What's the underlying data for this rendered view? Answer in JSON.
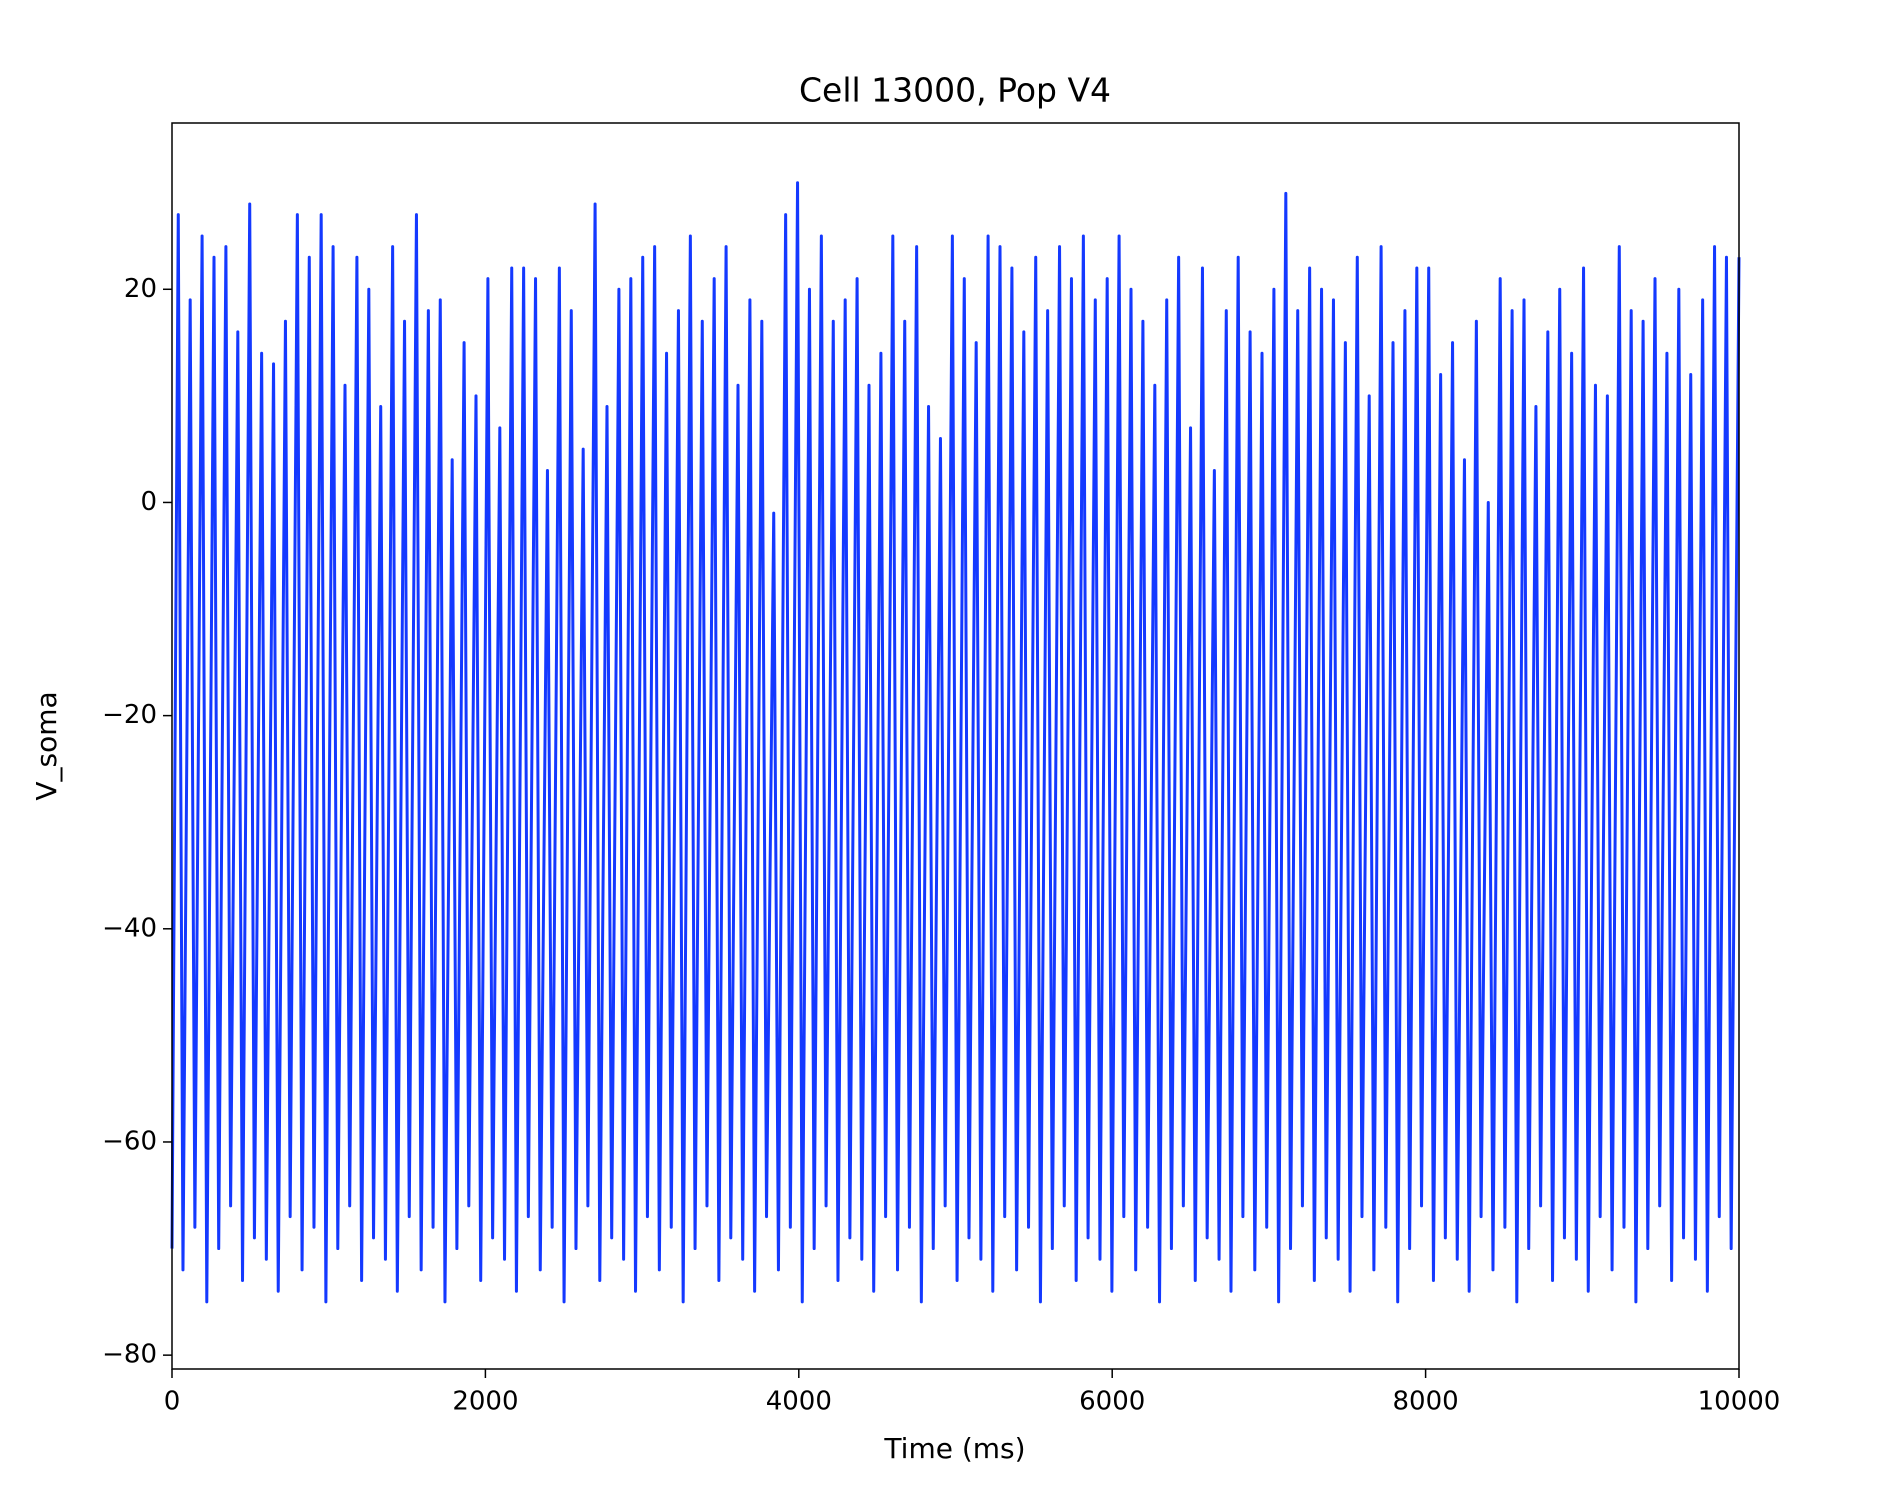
{
  "chart_data": {
    "type": "line",
    "title": "Cell 13000, Pop V4",
    "x_label": "Time (ms)",
    "y_label": "V_soma",
    "xlim": [
      0,
      10000
    ],
    "ylim": [
      -81.3,
      35.6
    ],
    "xticks": [
      0,
      2000,
      4000,
      6000,
      8000,
      10000
    ],
    "yticks": [
      {
        "value": -80,
        "label": "−80"
      },
      {
        "value": -60,
        "label": "−60"
      },
      {
        "value": -40,
        "label": "−40"
      },
      {
        "value": -20,
        "label": "−20"
      },
      0,
      20
    ],
    "color": "#1439ff",
    "x": [
      0,
      40,
      70,
      116,
      146,
      192,
      222,
      268,
      298,
      344,
      374,
      420,
      450,
      496,
      526,
      572,
      602,
      648,
      678,
      724,
      754,
      800,
      830,
      876,
      906,
      952,
      982,
      1028,
      1058,
      1104,
      1134,
      1180,
      1210,
      1256,
      1286,
      1332,
      1362,
      1408,
      1438,
      1484,
      1514,
      1560,
      1590,
      1636,
      1666,
      1712,
      1742,
      1788,
      1818,
      1864,
      1894,
      1940,
      1970,
      2016,
      2046,
      2092,
      2122,
      2168,
      2198,
      2244,
      2274,
      2320,
      2350,
      2396,
      2426,
      2472,
      2502,
      2548,
      2578,
      2624,
      2654,
      2700,
      2730,
      2776,
      2806,
      2852,
      2882,
      2928,
      2958,
      3004,
      3034,
      3080,
      3110,
      3156,
      3186,
      3232,
      3262,
      3308,
      3338,
      3384,
      3414,
      3460,
      3490,
      3536,
      3566,
      3612,
      3642,
      3688,
      3718,
      3764,
      3794,
      3840,
      3870,
      3916,
      3946,
      3992,
      4022,
      4068,
      4098,
      4144,
      4174,
      4220,
      4250,
      4296,
      4326,
      4372,
      4402,
      4448,
      4478,
      4524,
      4554,
      4600,
      4630,
      4676,
      4706,
      4752,
      4782,
      4828,
      4858,
      4904,
      4934,
      4980,
      5010,
      5056,
      5086,
      5132,
      5162,
      5208,
      5238,
      5284,
      5314,
      5360,
      5390,
      5436,
      5466,
      5512,
      5542,
      5588,
      5618,
      5664,
      5694,
      5740,
      5770,
      5816,
      5846,
      5892,
      5922,
      5968,
      5998,
      6044,
      6074,
      6120,
      6150,
      6196,
      6226,
      6272,
      6302,
      6348,
      6378,
      6424,
      6454,
      6500,
      6530,
      6576,
      6606,
      6652,
      6682,
      6728,
      6758,
      6804,
      6834,
      6880,
      6910,
      6956,
      6986,
      7032,
      7062,
      7108,
      7138,
      7184,
      7214,
      7260,
      7290,
      7336,
      7366,
      7412,
      7442,
      7488,
      7518,
      7564,
      7594,
      7640,
      7670,
      7716,
      7746,
      7792,
      7822,
      7868,
      7898,
      7944,
      7974,
      8020,
      8050,
      8096,
      8126,
      8172,
      8202,
      8248,
      8278,
      8324,
      8354,
      8400,
      8430,
      8476,
      8506,
      8552,
      8582,
      8628,
      8658,
      8704,
      8734,
      8780,
      8810,
      8856,
      8886,
      8932,
      8962,
      9008,
      9038,
      9084,
      9114,
      9160,
      9190,
      9236,
      9266,
      9312,
      9342,
      9388,
      9418,
      9464,
      9494,
      9540,
      9570,
      9616,
      9646,
      9692,
      9722,
      9768,
      9798,
      9844,
      9874,
      9920,
      9950,
      10000
    ],
    "values": [
      -70,
      27,
      -72,
      19,
      -68,
      25,
      -75,
      23,
      -70,
      24,
      -66,
      16,
      -73,
      28,
      -69,
      14,
      -71,
      13,
      -74,
      17,
      -67,
      27,
      -72,
      23,
      -68,
      27,
      -75,
      24,
      -70,
      11,
      -66,
      23,
      -73,
      20,
      -69,
      9,
      -71,
      24,
      -74,
      17,
      -67,
      27,
      -72,
      18,
      -68,
      19,
      -75,
      4,
      -70,
      15,
      -66,
      10,
      -73,
      21,
      -69,
      7,
      -71,
      22,
      -74,
      22,
      -67,
      21,
      -72,
      3,
      -68,
      22,
      -75,
      18,
      -70,
      5,
      -66,
      28,
      -73,
      9,
      -69,
      20,
      -71,
      21,
      -74,
      23,
      -67,
      24,
      -72,
      14,
      -68,
      18,
      -75,
      25,
      -70,
      17,
      -66,
      21,
      -73,
      24,
      -69,
      11,
      -71,
      19,
      -74,
      17,
      -67,
      -1,
      -72,
      27,
      -68,
      30,
      -75,
      20,
      -70,
      25,
      -66,
      17,
      -73,
      19,
      -69,
      21,
      -71,
      11,
      -74,
      14,
      -67,
      25,
      -72,
      17,
      -68,
      24,
      -75,
      9,
      -70,
      6,
      -66,
      25,
      -73,
      21,
      -69,
      15,
      -71,
      25,
      -74,
      24,
      -67,
      22,
      -72,
      16,
      -68,
      23,
      -75,
      18,
      -70,
      24,
      -66,
      21,
      -73,
      25,
      -69,
      19,
      -71,
      21,
      -74,
      25,
      -67,
      20,
      -72,
      17,
      -68,
      11,
      -75,
      19,
      -70,
      23,
      -66,
      7,
      -73,
      22,
      -69,
      3,
      -71,
      18,
      -74,
      23,
      -67,
      16,
      -72,
      14,
      -68,
      20,
      -75,
      29,
      -70,
      18,
      -66,
      22,
      -73,
      20,
      -69,
      19,
      -71,
      15,
      -74,
      23,
      -67,
      10,
      -72,
      24,
      -68,
      15,
      -75,
      18,
      -70,
      22,
      -66,
      22,
      -73,
      12,
      -69,
      15,
      -71,
      4,
      -74,
      17,
      -67,
      0,
      -72,
      21,
      -68,
      18,
      -75,
      19,
      -70,
      9,
      -66,
      16,
      -73,
      20,
      -69,
      14,
      -71,
      22,
      -74,
      11,
      -67,
      10,
      -72,
      24,
      -68,
      18,
      -75,
      17,
      -70,
      21,
      -66,
      14,
      -73,
      20,
      -69,
      12,
      -71,
      19,
      -74,
      24,
      -67,
      23,
      -70,
      23
    ]
  }
}
